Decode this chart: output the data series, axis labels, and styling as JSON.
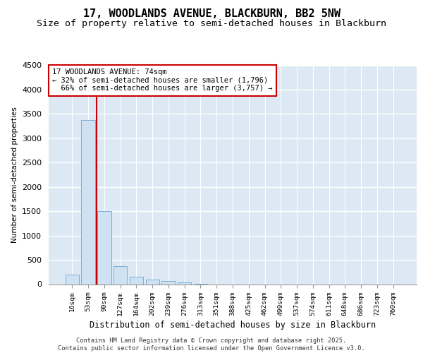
{
  "title_line1": "17, WOODLANDS AVENUE, BLACKBURN, BB2 5NW",
  "title_line2": "Size of property relative to semi-detached houses in Blackburn",
  "xlabel": "Distribution of semi-detached houses by size in Blackburn",
  "ylabel": "Number of semi-detached properties",
  "categories": [
    "16sqm",
    "53sqm",
    "90sqm",
    "127sqm",
    "164sqm",
    "202sqm",
    "239sqm",
    "276sqm",
    "313sqm",
    "351sqm",
    "388sqm",
    "425sqm",
    "462sqm",
    "499sqm",
    "537sqm",
    "574sqm",
    "611sqm",
    "648sqm",
    "686sqm",
    "723sqm",
    "760sqm"
  ],
  "values": [
    200,
    3370,
    1500,
    370,
    150,
    90,
    60,
    30,
    10,
    0,
    0,
    0,
    0,
    0,
    0,
    0,
    0,
    0,
    0,
    0,
    0
  ],
  "bar_color": "#cfe2f3",
  "bar_edge_color": "#7bafd4",
  "pct_smaller": 32,
  "pct_larger": 66,
  "count_smaller": 1796,
  "count_larger": 3757,
  "ylim": [
    0,
    4500
  ],
  "yticks": [
    0,
    500,
    1000,
    1500,
    2000,
    2500,
    3000,
    3500,
    4000,
    4500
  ],
  "background_color": "#dce9f5",
  "footer": "Contains HM Land Registry data © Crown copyright and database right 2025.\nContains public sector information licensed under the Open Government Licence v3.0.",
  "title_fontsize": 11,
  "subtitle_fontsize": 9.5
}
